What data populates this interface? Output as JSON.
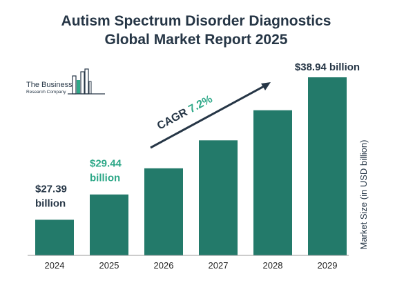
{
  "title_line1": "Autism Spectrum Disorder Diagnostics",
  "title_line2": "Global Market Report 2025",
  "logo": {
    "line1": "The Business",
    "line2": "Research Company"
  },
  "cagr": {
    "prefix": "CAGR ",
    "value": "7.2%"
  },
  "colors": {
    "bar": "#237a6a",
    "accent": "#2ea888",
    "dark": "#263646",
    "arrow": "#263646"
  },
  "chart_data": {
    "type": "bar",
    "categories": [
      "2024",
      "2025",
      "2026",
      "2027",
      "2028",
      "2029"
    ],
    "values": [
      27.39,
      29.44,
      31.56,
      33.83,
      36.27,
      38.94
    ],
    "ylabel": "Market Size (in USD billion)",
    "ylim": [
      24.5,
      39.5
    ],
    "data_labels": [
      {
        "index": 0,
        "line1": "$27.39",
        "line2": "billion",
        "color": "#263646"
      },
      {
        "index": 1,
        "line1": "$29.44",
        "line2": "billion",
        "color": "#2ea888"
      },
      {
        "index": 5,
        "line1": "$38.94 billion",
        "line2": "",
        "color": "#263646"
      }
    ],
    "grid": false,
    "legend": "none"
  }
}
